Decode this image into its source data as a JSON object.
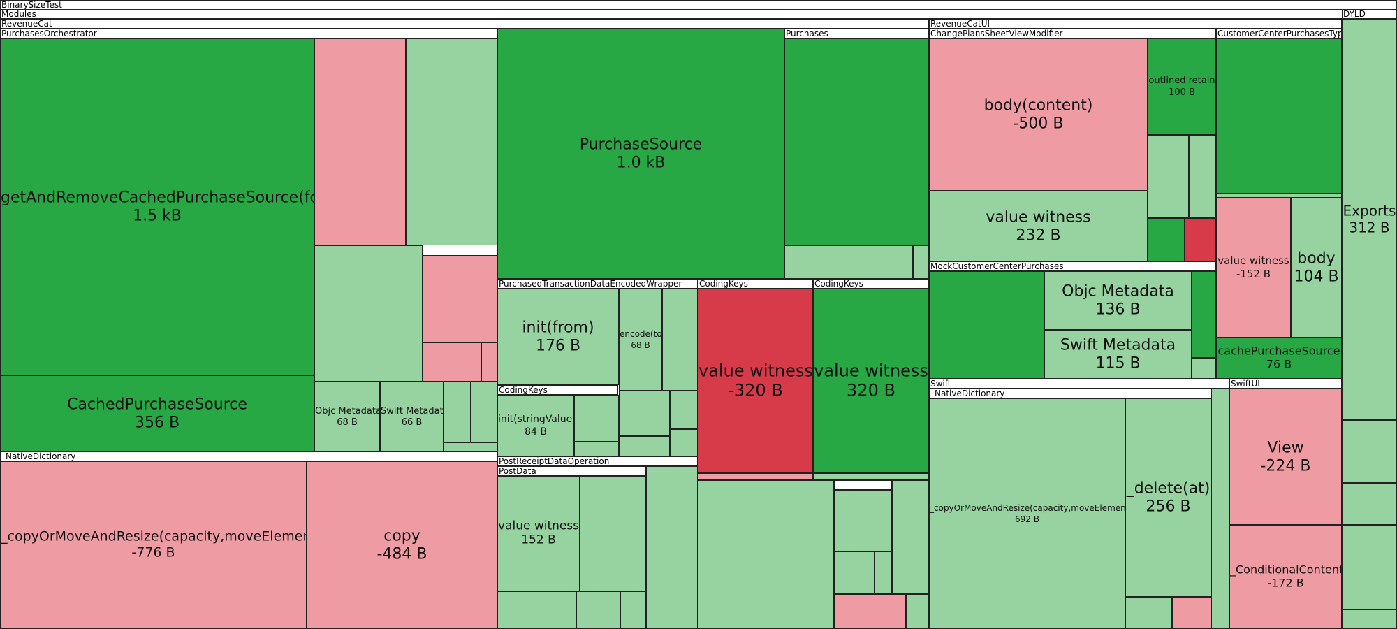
{
  "chart_data": {
    "type": "treemap",
    "colors": {
      "strong_increase": "#28a745",
      "mild_increase": "#96d3a0",
      "mild_decrease": "#ee9ba4",
      "strong_decrease": "#d73a49",
      "header": "#ffffff"
    },
    "headers": [
      {
        "id": "h-binarysizetest",
        "label": "BinarySizeTest"
      },
      {
        "id": "h-modules",
        "label": "Modules"
      },
      {
        "id": "h-revenuecat",
        "label": "RevenueCat"
      },
      {
        "id": "h-dyld",
        "label": "DYLD"
      },
      {
        "id": "h-revenuecatui",
        "label": "RevenueCatUI"
      },
      {
        "id": "h-purchasesorchestrator",
        "label": "PurchasesOrchestrator"
      },
      {
        "id": "h-purchases",
        "label": "Purchases"
      },
      {
        "id": "h-changeplans",
        "label": "ChangePlansSheetViewModifier"
      },
      {
        "id": "h-customercenterpurchasestype",
        "label": "CustomerCenterPurchasesType"
      },
      {
        "id": "h-purchasedtransaction",
        "label": "PurchasedTransactionDataEncodedWrapper"
      },
      {
        "id": "h-codingkeys-a",
        "label": "CodingKeys"
      },
      {
        "id": "h-codingkeys-b",
        "label": "CodingKeys"
      },
      {
        "id": "h-mockcustomercenter",
        "label": "MockCustomerCenterPurchases"
      },
      {
        "id": "h-codingkeys-c",
        "label": "CodingKeys"
      },
      {
        "id": "h-swift",
        "label": "Swift"
      },
      {
        "id": "h-swiftui",
        "label": "SwiftUI"
      },
      {
        "id": "h-nativedict-rc",
        "label": "_NativeDictionary"
      },
      {
        "id": "h-nativedict-ui",
        "label": "_NativeDictionary"
      },
      {
        "id": "h-postreceipt",
        "label": "PostReceiptDataOperation"
      },
      {
        "id": "h-postdata",
        "label": "PostData"
      }
    ],
    "nodes": [
      {
        "id": "n-getandremove",
        "name": "getAndRemoveCachedPurchaseSource(for)",
        "value": "1.5 kB",
        "change": "strong_increase"
      },
      {
        "id": "n-cachedpurchasesource",
        "name": "CachedPurchaseSource",
        "value": "356 B",
        "change": "strong_increase"
      },
      {
        "id": "n-po-1",
        "name": "",
        "value": "",
        "change": "mild_decrease"
      },
      {
        "id": "n-po-2",
        "name": "",
        "value": "",
        "change": "mild_increase"
      },
      {
        "id": "n-po-3",
        "name": "",
        "value": "",
        "change": "mild_increase"
      },
      {
        "id": "n-po-4",
        "name": "",
        "value": "",
        "change": "mild_decrease"
      },
      {
        "id": "n-po-5",
        "name": "",
        "value": "",
        "change": "mild_decrease"
      },
      {
        "id": "n-po-6",
        "name": "",
        "value": "",
        "change": "mild_decrease"
      },
      {
        "id": "n-objc-metadata-po",
        "name": "Objc Metadata",
        "value": "68 B",
        "change": "mild_increase"
      },
      {
        "id": "n-swift-metadata-po",
        "name": "Swift Metadata",
        "value": "66 B",
        "change": "mild_increase"
      },
      {
        "id": "n-po-7",
        "name": "",
        "value": "",
        "change": "mild_increase"
      },
      {
        "id": "n-po-8",
        "name": "",
        "value": "",
        "change": "mild_increase"
      },
      {
        "id": "n-po-9",
        "name": "",
        "value": "",
        "change": "mild_increase"
      },
      {
        "id": "n-copyormove-rc",
        "name": "_copyOrMoveAndResize(capacity,moveElements)",
        "value": "-776 B",
        "change": "mild_decrease"
      },
      {
        "id": "n-copy",
        "name": "copy",
        "value": "-484 B",
        "change": "mild_decrease"
      },
      {
        "id": "n-purchasesource",
        "name": "PurchaseSource",
        "value": "1.0 kB",
        "change": "strong_increase"
      },
      {
        "id": "n-purchases-1",
        "name": "",
        "value": "",
        "change": "strong_increase"
      },
      {
        "id": "n-purchases-2",
        "name": "",
        "value": "",
        "change": "mild_increase"
      },
      {
        "id": "n-purchases-3",
        "name": "",
        "value": "",
        "change": "mild_increase"
      },
      {
        "id": "n-init-from",
        "name": "init(from)",
        "value": "176 B",
        "change": "mild_increase"
      },
      {
        "id": "n-encode-to",
        "name": "encode(to)",
        "value": "68 B",
        "change": "mild_increase"
      },
      {
        "id": "n-ptd-1",
        "name": "",
        "value": "",
        "change": "mild_increase"
      },
      {
        "id": "n-ptd-2",
        "name": "",
        "value": "",
        "change": "mild_increase"
      },
      {
        "id": "n-ptd-3",
        "name": "",
        "value": "",
        "change": "mild_increase"
      },
      {
        "id": "n-ptd-4",
        "name": "",
        "value": "",
        "change": "mild_increase"
      },
      {
        "id": "n-ptd-5",
        "name": "",
        "value": "",
        "change": "mild_increase"
      },
      {
        "id": "n-init-stringvalue",
        "name": "init(stringValue)",
        "value": "84 B",
        "change": "mild_increase"
      },
      {
        "id": "n-ck-c-1",
        "name": "",
        "value": "",
        "change": "mild_increase"
      },
      {
        "id": "n-ck-c-2",
        "name": "",
        "value": "",
        "change": "mild_increase"
      },
      {
        "id": "n-vw-neg320",
        "name": "value witness",
        "value": "-320 B",
        "change": "strong_decrease"
      },
      {
        "id": "n-vw-320",
        "name": "value witness",
        "value": "320 B",
        "change": "strong_increase"
      },
      {
        "id": "n-ck-a-bottom",
        "name": "",
        "value": "",
        "change": "mild_decrease"
      },
      {
        "id": "n-ck-b-bottom",
        "name": "",
        "value": "",
        "change": "mild_increase"
      },
      {
        "id": "n-vw-152-pd",
        "name": "value witness",
        "value": "152 B",
        "change": "mild_increase"
      },
      {
        "id": "n-pd-1",
        "name": "",
        "value": "",
        "change": "mild_increase"
      },
      {
        "id": "n-pd-2",
        "name": "",
        "value": "",
        "change": "mild_increase"
      },
      {
        "id": "n-pd-3",
        "name": "",
        "value": "",
        "change": "mild_increase"
      },
      {
        "id": "n-pd-4",
        "name": "",
        "value": "",
        "change": "mild_increase"
      },
      {
        "id": "n-pd-5",
        "name": "",
        "value": "",
        "change": "mild_increase"
      },
      {
        "id": "n-mid-1",
        "name": "",
        "value": "",
        "change": "mild_increase"
      },
      {
        "id": "n-mid-hdr",
        "name": "",
        "value": "",
        "change": "header"
      },
      {
        "id": "n-mid-2",
        "name": "",
        "value": "",
        "change": "mild_increase"
      },
      {
        "id": "n-mid-3",
        "name": "",
        "value": "",
        "change": "mild_increase"
      },
      {
        "id": "n-mid-4",
        "name": "",
        "value": "",
        "change": "mild_increase"
      },
      {
        "id": "n-mid-5",
        "name": "",
        "value": "",
        "change": "mild_increase"
      },
      {
        "id": "n-mid-6",
        "name": "",
        "value": "",
        "change": "mild_decrease"
      },
      {
        "id": "n-mid-7",
        "name": "",
        "value": "",
        "change": "mild_increase"
      },
      {
        "id": "n-body-content",
        "name": "body(content)",
        "value": "-500 B",
        "change": "mild_decrease"
      },
      {
        "id": "n-outlined-retain",
        "name": "outlined retain",
        "value": "100 B",
        "change": "strong_increase"
      },
      {
        "id": "n-cp-1",
        "name": "",
        "value": "",
        "change": "mild_increase"
      },
      {
        "id": "n-cp-2",
        "name": "",
        "value": "",
        "change": "mild_increase"
      },
      {
        "id": "n-cp-3",
        "name": "",
        "value": "",
        "change": "strong_increase"
      },
      {
        "id": "n-cp-4",
        "name": "",
        "value": "",
        "change": "strong_decrease"
      },
      {
        "id": "n-vw-232",
        "name": "value witness",
        "value": "232 B",
        "change": "mild_increase"
      },
      {
        "id": "n-mcc-1",
        "name": "",
        "value": "",
        "change": "strong_increase"
      },
      {
        "id": "n-objc-metadata-mcc",
        "name": "Objc Metadata",
        "value": "136 B",
        "change": "mild_increase"
      },
      {
        "id": "n-swift-metadata-mcc",
        "name": "Swift Metadata",
        "value": "115 B",
        "change": "mild_increase"
      },
      {
        "id": "n-mcc-2",
        "name": "",
        "value": "",
        "change": "strong_increase"
      },
      {
        "id": "n-mcc-3",
        "name": "",
        "value": "",
        "change": "mild_increase"
      },
      {
        "id": "n-ccpt-1",
        "name": "",
        "value": "",
        "change": "strong_increase"
      },
      {
        "id": "n-ccpt-2",
        "name": "",
        "value": "",
        "change": "mild_increase"
      },
      {
        "id": "n-vw-neg152",
        "name": "value witness",
        "value": "-152 B",
        "change": "mild_decrease"
      },
      {
        "id": "n-body-104",
        "name": "body",
        "value": "104 B",
        "change": "mild_increase"
      },
      {
        "id": "n-cachepurchasesource",
        "name": "cachePurchaseSource",
        "value": "76 B",
        "change": "strong_increase"
      },
      {
        "id": "n-copyormove-ui",
        "name": "_copyOrMoveAndResize(capacity,moveElements)",
        "value": "692 B",
        "change": "mild_increase"
      },
      {
        "id": "n-delete-at",
        "name": "_delete(at)",
        "value": "256 B",
        "change": "mild_increase"
      },
      {
        "id": "n-nd-1",
        "name": "",
        "value": "",
        "change": "mild_increase"
      },
      {
        "id": "n-nd-2",
        "name": "",
        "value": "",
        "change": "mild_decrease"
      },
      {
        "id": "n-nd-3",
        "name": "",
        "value": "",
        "change": "mild_increase"
      },
      {
        "id": "n-view",
        "name": "View",
        "value": "-224 B",
        "change": "mild_decrease"
      },
      {
        "id": "n-conditionalcontent",
        "name": "_ConditionalContent",
        "value": "-172 B",
        "change": "mild_decrease"
      },
      {
        "id": "n-exports",
        "name": "Exports",
        "value": "312 B",
        "change": "mild_increase"
      },
      {
        "id": "n-dyld-1",
        "name": "",
        "value": "",
        "change": "mild_increase"
      },
      {
        "id": "n-dyld-2",
        "name": "",
        "value": "",
        "change": "mild_increase"
      },
      {
        "id": "n-dyld-3",
        "name": "",
        "value": "",
        "change": "mild_increase"
      },
      {
        "id": "n-dyld-4",
        "name": "",
        "value": "",
        "change": "mild_increase"
      }
    ]
  }
}
